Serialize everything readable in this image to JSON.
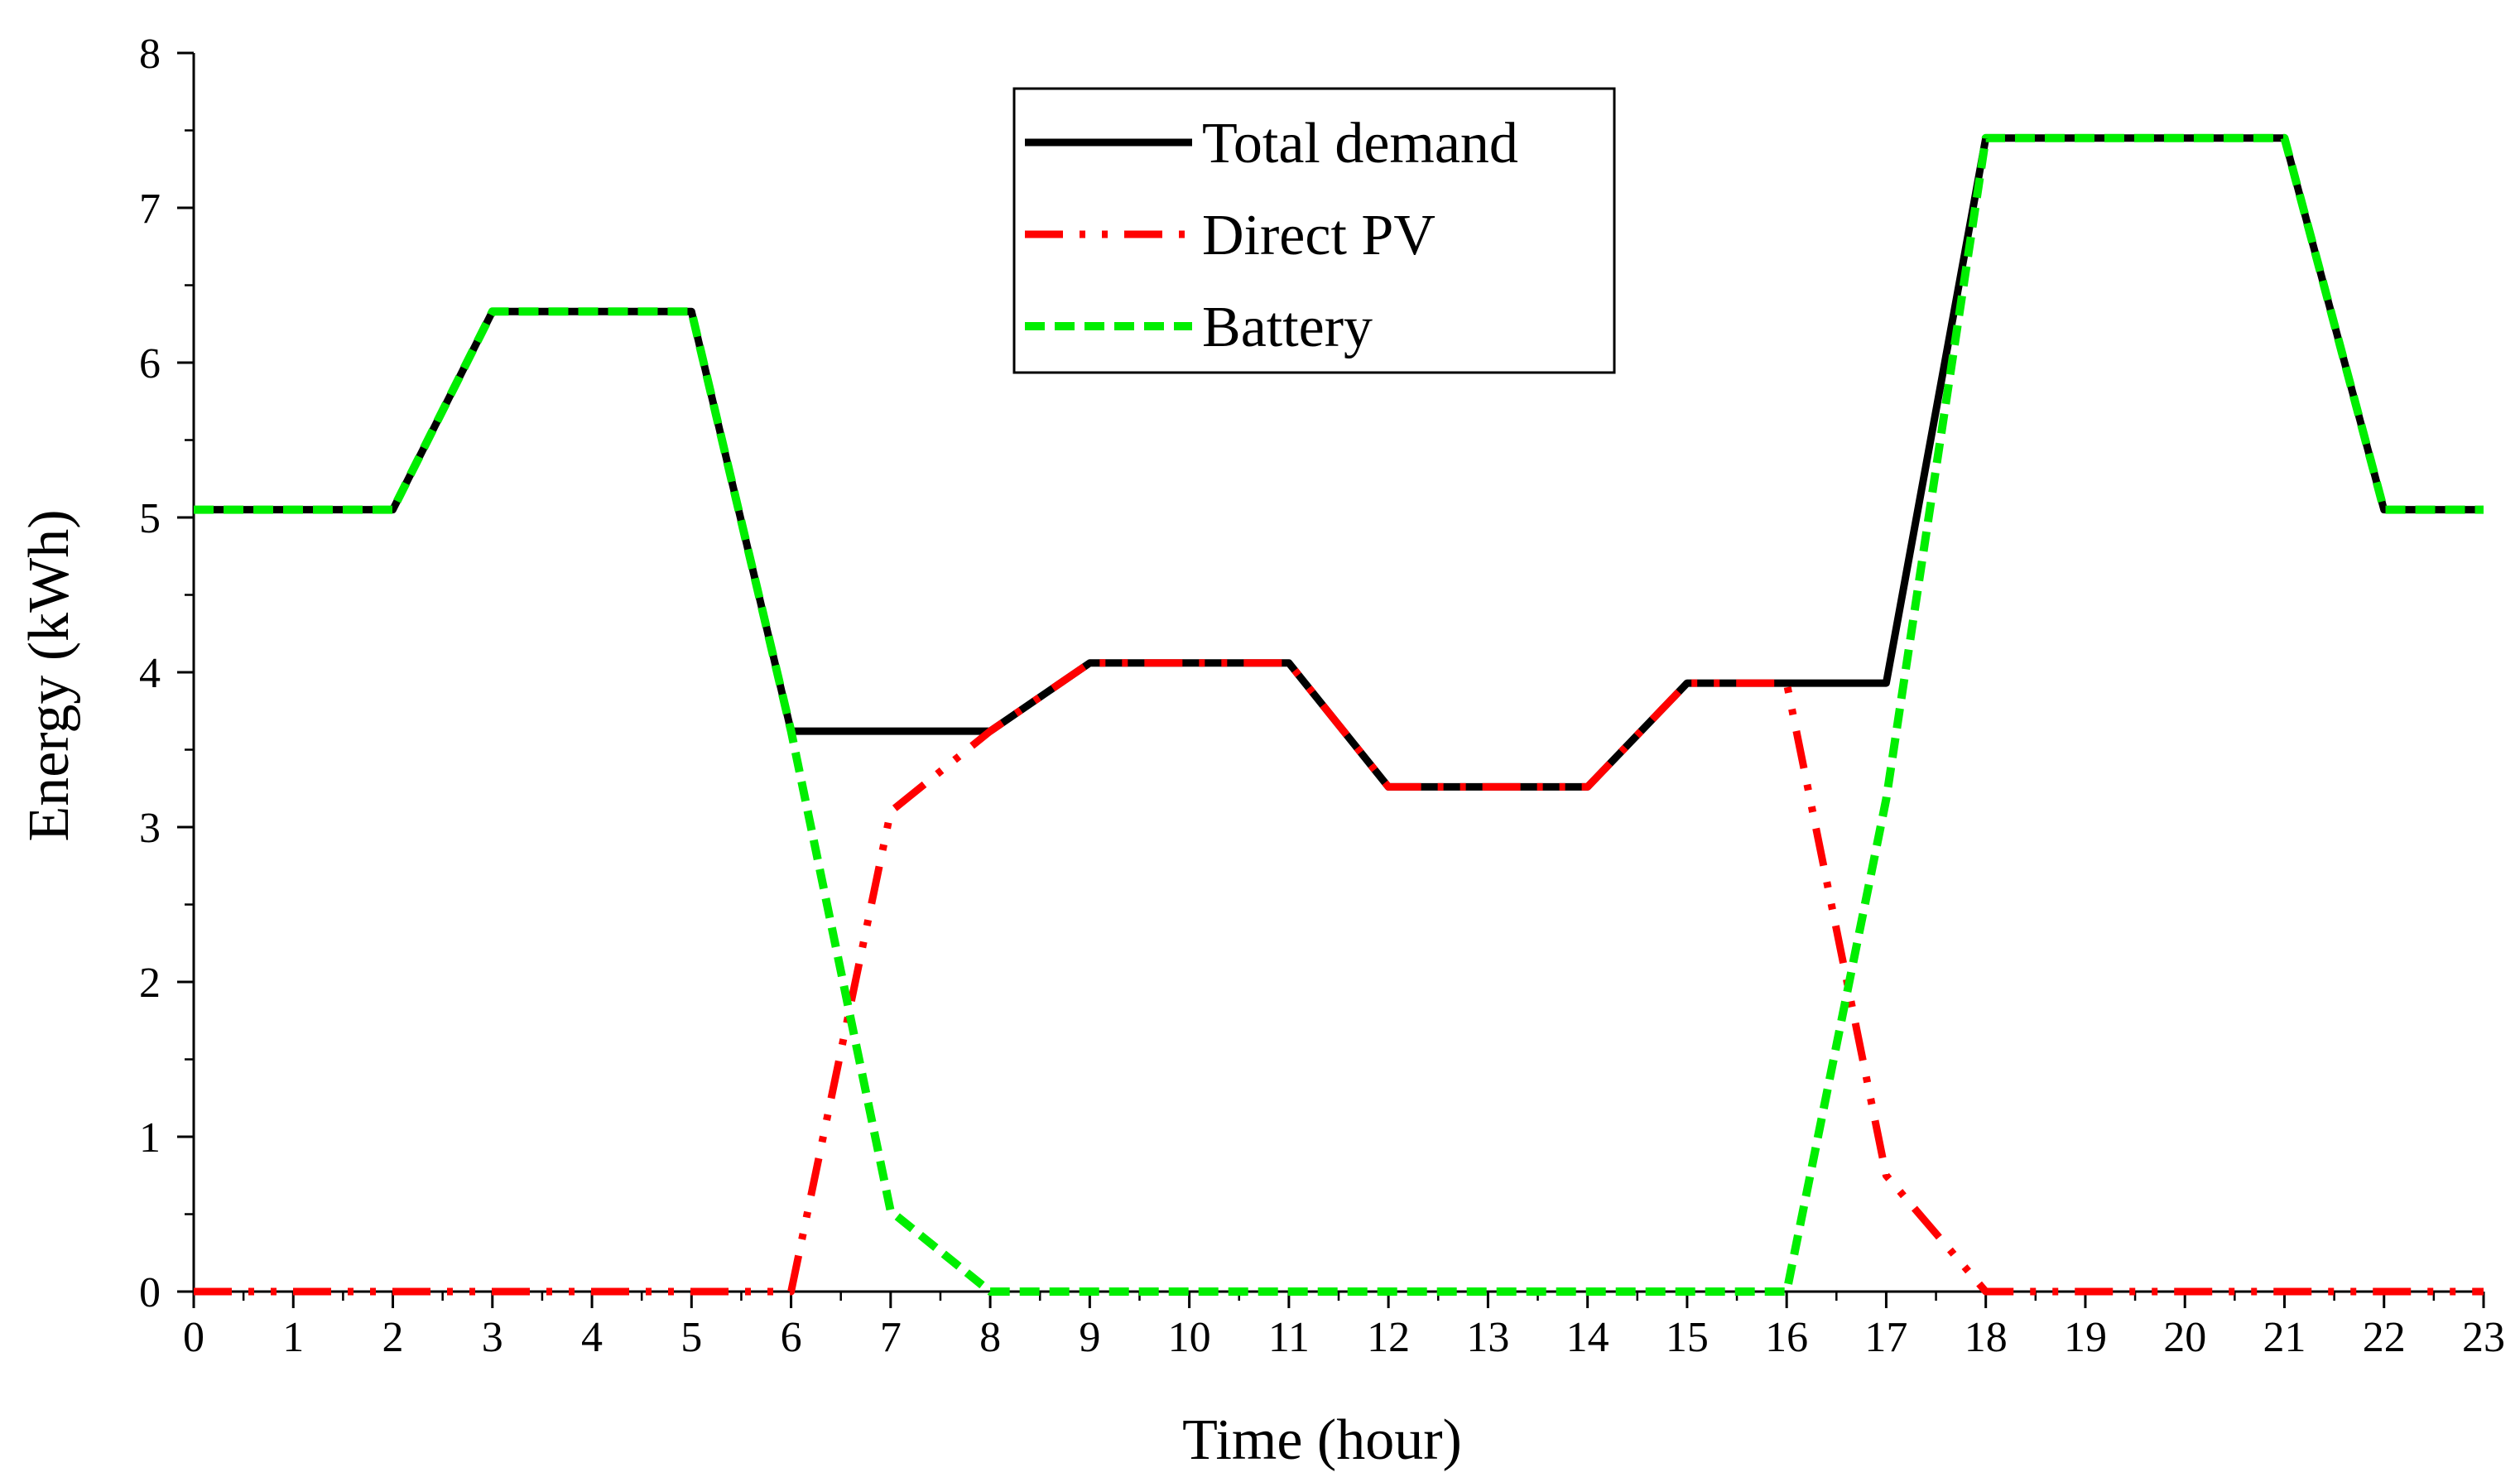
{
  "chart_data": {
    "type": "line",
    "title": "",
    "xlabel": "Time (hour)",
    "ylabel": "Energy (kWh)",
    "xlim": [
      0,
      23
    ],
    "ylim": [
      0,
      8
    ],
    "x": [
      0,
      1,
      2,
      3,
      4,
      5,
      6,
      7,
      8,
      9,
      10,
      11,
      12,
      13,
      14,
      15,
      16,
      17,
      18,
      19,
      20,
      21,
      22,
      23
    ],
    "xticks": [
      "0",
      "1",
      "2",
      "3",
      "4",
      "5",
      "6",
      "7",
      "8",
      "9",
      "10",
      "11",
      "12",
      "13",
      "14",
      "15",
      "16",
      "17",
      "18",
      "19",
      "20",
      "21",
      "22",
      "23"
    ],
    "yticks": [
      "0",
      "1",
      "2",
      "3",
      "4",
      "5",
      "6",
      "7",
      "8"
    ],
    "grid": false,
    "legend_position": "top-center",
    "series": [
      {
        "name": "Total demand",
        "color": "#000000",
        "style": "solid",
        "values": [
          5.05,
          5.05,
          5.05,
          6.33,
          6.33,
          6.33,
          3.62,
          3.62,
          3.62,
          4.06,
          4.06,
          4.06,
          3.26,
          3.26,
          3.26,
          3.93,
          3.93,
          3.93,
          7.45,
          7.45,
          7.45,
          7.45,
          5.05,
          5.05
        ]
      },
      {
        "name": "Direct PV",
        "color": "#ff0000",
        "style": "dash-dot-dot",
        "values": [
          0,
          0,
          0,
          0,
          0,
          0,
          0,
          3.1,
          3.62,
          4.06,
          4.06,
          4.06,
          3.26,
          3.26,
          3.26,
          3.93,
          3.93,
          0.75,
          0,
          0,
          0,
          0,
          0,
          0
        ]
      },
      {
        "name": "Battery",
        "color": "#00ee00",
        "style": "dashed",
        "values": [
          5.05,
          5.05,
          5.05,
          6.33,
          6.33,
          6.33,
          3.62,
          0.52,
          0,
          0,
          0,
          0,
          0,
          0,
          0,
          0,
          0,
          3.18,
          7.45,
          7.45,
          7.45,
          7.45,
          5.05,
          5.05
        ]
      }
    ]
  }
}
